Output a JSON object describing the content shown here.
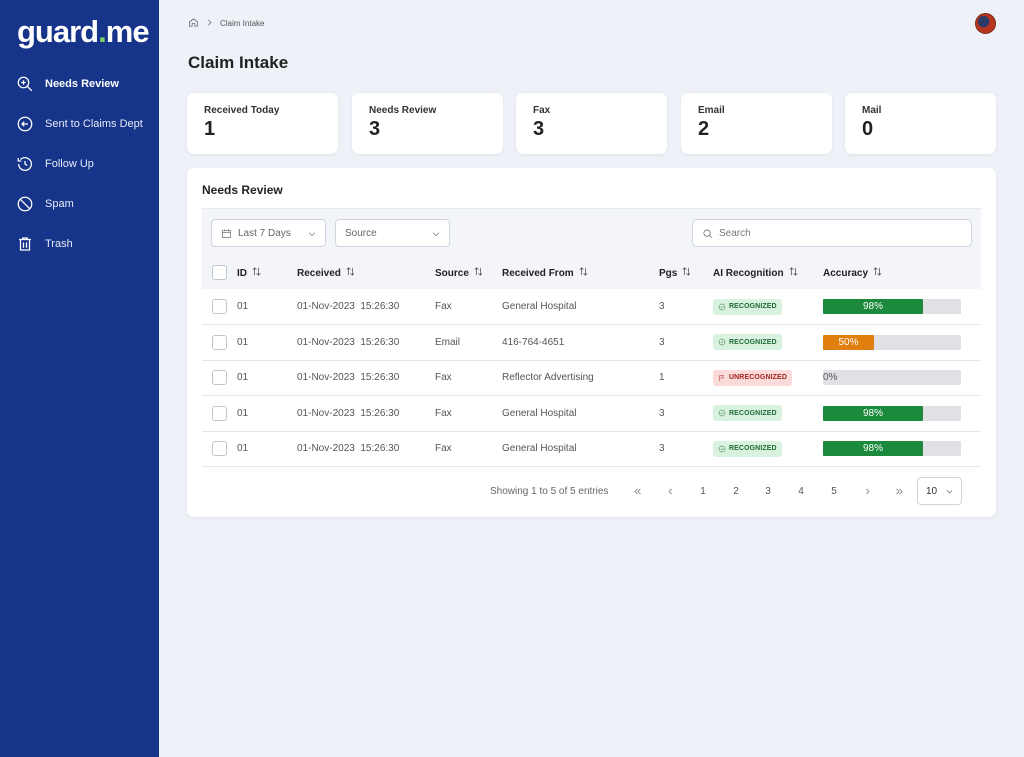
{
  "brand": {
    "logo_main": "guard",
    "logo_dot": ".",
    "logo_tld": "me",
    "accent": "#7dd36a",
    "sidebar_bg": "#163489"
  },
  "sidebar": {
    "items": [
      {
        "label": "Needs Review",
        "icon": "zoom-in-icon",
        "active": true
      },
      {
        "label": "Sent to Claims Dept",
        "icon": "arrow-left-circle-icon",
        "active": false
      },
      {
        "label": "Follow Up",
        "icon": "history-icon",
        "active": false
      },
      {
        "label": "Spam",
        "icon": "ban-icon",
        "active": false
      },
      {
        "label": "Trash",
        "icon": "trash-icon",
        "active": false
      }
    ]
  },
  "breadcrumb": {
    "current": "Claim Intake"
  },
  "page": {
    "title": "Claim Intake"
  },
  "stats": [
    {
      "label": "Received Today",
      "value": "1"
    },
    {
      "label": "Needs Review",
      "value": "3"
    },
    {
      "label": "Fax",
      "value": "3"
    },
    {
      "label": "Email",
      "value": "2"
    },
    {
      "label": "Mail",
      "value": "0"
    }
  ],
  "panel": {
    "title": "Needs Review",
    "filters": {
      "date_range": "Last 7 Days",
      "source": "Source"
    },
    "search": {
      "placeholder": "Search",
      "value": ""
    },
    "columns": [
      "ID",
      "Received",
      "Source",
      "Received From",
      "Pgs",
      "AI Recognition",
      "Accuracy"
    ],
    "rows": [
      {
        "id": "01",
        "received": "01-Nov-2023  15:26:30",
        "source": "Fax",
        "from": "General Hospital",
        "pgs": "3",
        "recognition": "RECOGNIZED",
        "status": "ok",
        "accuracy": 98,
        "accuracy_label": "98%"
      },
      {
        "id": "01",
        "received": "01-Nov-2023  15:26:30",
        "source": "Email",
        "from": "416-764-4651",
        "pgs": "3",
        "recognition": "RECOGNIZED",
        "status": "ok",
        "accuracy": 50,
        "accuracy_label": "50%"
      },
      {
        "id": "01",
        "received": "01-Nov-2023  15:26:30",
        "source": "Fax",
        "from": "Reflector Advertising",
        "pgs": "1",
        "recognition": "UNRECOGNIZED",
        "status": "bad",
        "accuracy": 0,
        "accuracy_label": "0%"
      },
      {
        "id": "01",
        "received": "01-Nov-2023  15:26:30",
        "source": "Fax",
        "from": "General Hospital",
        "pgs": "3",
        "recognition": "RECOGNIZED",
        "status": "ok",
        "accuracy": 98,
        "accuracy_label": "98%"
      },
      {
        "id": "01",
        "received": "01-Nov-2023  15:26:30",
        "source": "Fax",
        "from": "General Hospital",
        "pgs": "3",
        "recognition": "RECOGNIZED",
        "status": "ok",
        "accuracy": 98,
        "accuracy_label": "98%"
      }
    ],
    "accuracy_colors": {
      "high": "#1b8a3c",
      "medium": "#e07f0e"
    }
  },
  "pagination": {
    "info": "Showing 1 to 5 of 5 entries",
    "pages": [
      "1",
      "2",
      "3",
      "4",
      "5"
    ],
    "page_size": "10"
  }
}
